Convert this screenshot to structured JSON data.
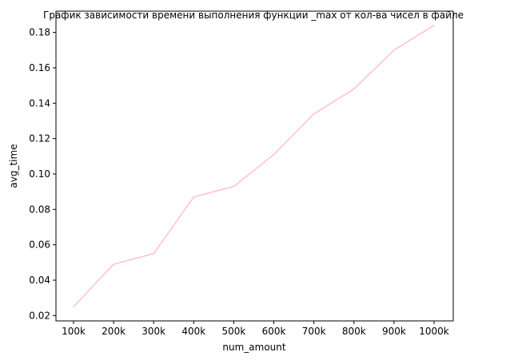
{
  "chart_data": {
    "type": "line",
    "title": "График зависимости времени выполнения функции _max от кол-ва чисел в файле",
    "xlabel": "num_amount",
    "ylabel": "avg_time",
    "categories": [
      "100k",
      "200k",
      "300k",
      "400k",
      "500k",
      "600k",
      "700k",
      "800k",
      "900k",
      "1000k"
    ],
    "series": [
      {
        "values": [
          0.025,
          0.049,
          0.055,
          0.087,
          0.093,
          0.111,
          0.134,
          0.148,
          0.17,
          0.184
        ],
        "color": "#ffc0cb"
      }
    ],
    "yticks": [
      0.02,
      0.04,
      0.06,
      0.08,
      0.1,
      0.12,
      0.14,
      0.16,
      0.18
    ],
    "ytick_labels": [
      "0.02",
      "0.04",
      "0.06",
      "0.08",
      "0.10",
      "0.12",
      "0.14",
      "0.16",
      "0.18"
    ],
    "ylim": [
      0.017,
      0.192
    ],
    "grid": false,
    "legend": "none"
  }
}
